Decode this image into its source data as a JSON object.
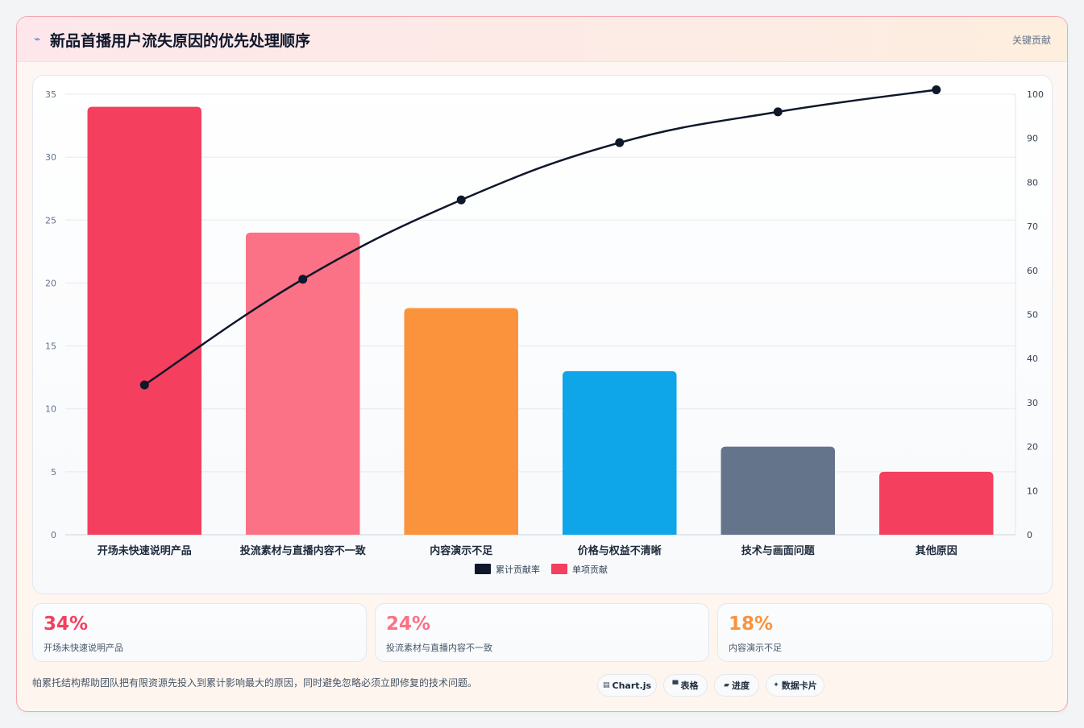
{
  "header": {
    "icon": "chart-icon",
    "title": "新品首播用户流失原因的优先处理顺序",
    "tag": "关键贡献"
  },
  "chart_data": {
    "type": "bar",
    "categories": [
      "开场未快速说明产品",
      "投流素材与直播内容不一致",
      "内容演示不足",
      "价格与权益不清晰",
      "技术与画面问题",
      "其他原因"
    ],
    "series": [
      {
        "name": "单项贡献",
        "type": "bar",
        "axis": "left",
        "values": [
          34,
          24,
          18,
          13,
          7,
          5
        ]
      },
      {
        "name": "累计贡献率",
        "type": "line",
        "axis": "right",
        "values": [
          34,
          58,
          76,
          89,
          96,
          101
        ]
      }
    ],
    "bar_colors": [
      "#f43f5e",
      "#fb7185",
      "#fb923c",
      "#0ea5e9",
      "#64748b",
      "#f43f5e"
    ],
    "line_color": "#0f172a",
    "ylim": [
      0,
      35
    ],
    "y_ticks": [
      0,
      5,
      10,
      15,
      20,
      25,
      30,
      35
    ],
    "y2lim": [
      0,
      100
    ],
    "y2_ticks": [
      0,
      10,
      20,
      30,
      40,
      50,
      60,
      70,
      80,
      90,
      100
    ],
    "legend": [
      "累计贡献率",
      "单项贡献"
    ],
    "legend_position": "bottom",
    "grid": true
  },
  "stats": [
    {
      "value": "34%",
      "label": "开场未快速说明产品",
      "color": "#f43f5e"
    },
    {
      "value": "24%",
      "label": "投流素材与直播内容不一致",
      "color": "#fb7185"
    },
    {
      "value": "18%",
      "label": "内容演示不足",
      "color": "#fb923c"
    }
  ],
  "footer": {
    "note": "帕累托结构帮助团队把有限资源先投入到累计影响最大的原因，同时避免忽略必须立即修复的技术问题。",
    "pills": [
      {
        "icon": "chart-icon",
        "label": "Chart.js"
      },
      {
        "icon": "table-icon",
        "label": "表格"
      },
      {
        "icon": "progress-icon",
        "label": "进度"
      },
      {
        "icon": "card-icon",
        "label": "数据卡片"
      }
    ]
  }
}
